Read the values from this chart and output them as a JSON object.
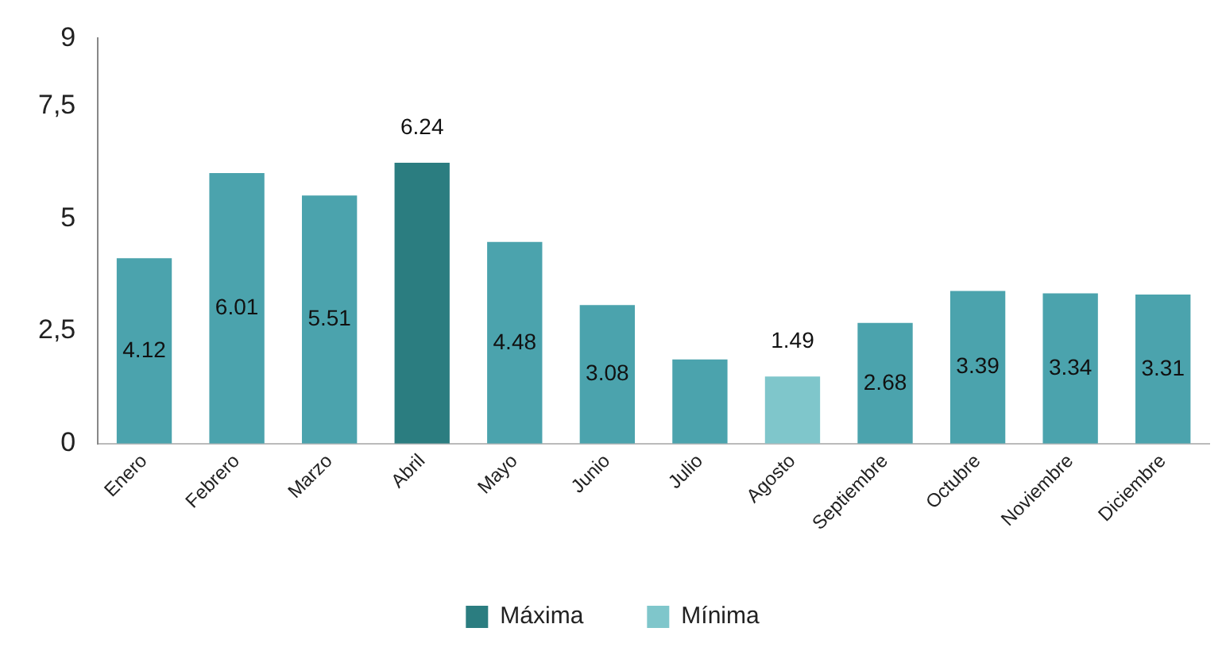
{
  "chart_data": {
    "type": "bar",
    "categories": [
      "Enero",
      "Febrero",
      "Marzo",
      "Abril",
      "Mayo",
      "Junio",
      "Julio",
      "Agosto",
      "Septiembre",
      "Octubre",
      "Noviembre",
      "Diciembre"
    ],
    "series": [
      {
        "name": "Máxima",
        "color": "#2b7d80",
        "values": [
          null,
          null,
          null,
          6.24,
          null,
          null,
          null,
          null,
          null,
          null,
          null,
          null
        ],
        "value_labels": [
          null,
          null,
          null,
          "6.24",
          null,
          null,
          null,
          null,
          null,
          null,
          null,
          null
        ]
      },
      {
        "name": "Mínima",
        "color": "#7fc6cb",
        "values": [
          null,
          null,
          null,
          null,
          null,
          null,
          null,
          1.49,
          null,
          null,
          null,
          null
        ],
        "value_labels": [
          null,
          null,
          null,
          null,
          null,
          null,
          null,
          "1.49",
          null,
          null,
          null,
          null
        ]
      },
      {
        "color": "#4ba3ad",
        "values": [
          4.12,
          6.01,
          5.51,
          null,
          4.48,
          3.08,
          1.87,
          null,
          2.68,
          3.39,
          3.34,
          3.31
        ],
        "value_labels": [
          "4.12",
          "6.01",
          "5.51",
          null,
          "4.48",
          "3.08",
          null,
          null,
          "2.68",
          "3.39",
          "3.34",
          "3.31"
        ]
      }
    ],
    "ylim": [
      0,
      9
    ],
    "yticks": [
      0,
      {
        "value": 2.5,
        "label": "2,5"
      },
      5,
      {
        "value": 7.5,
        "label": "7,5"
      },
      9
    ],
    "grid": false,
    "legend": "bottom"
  }
}
